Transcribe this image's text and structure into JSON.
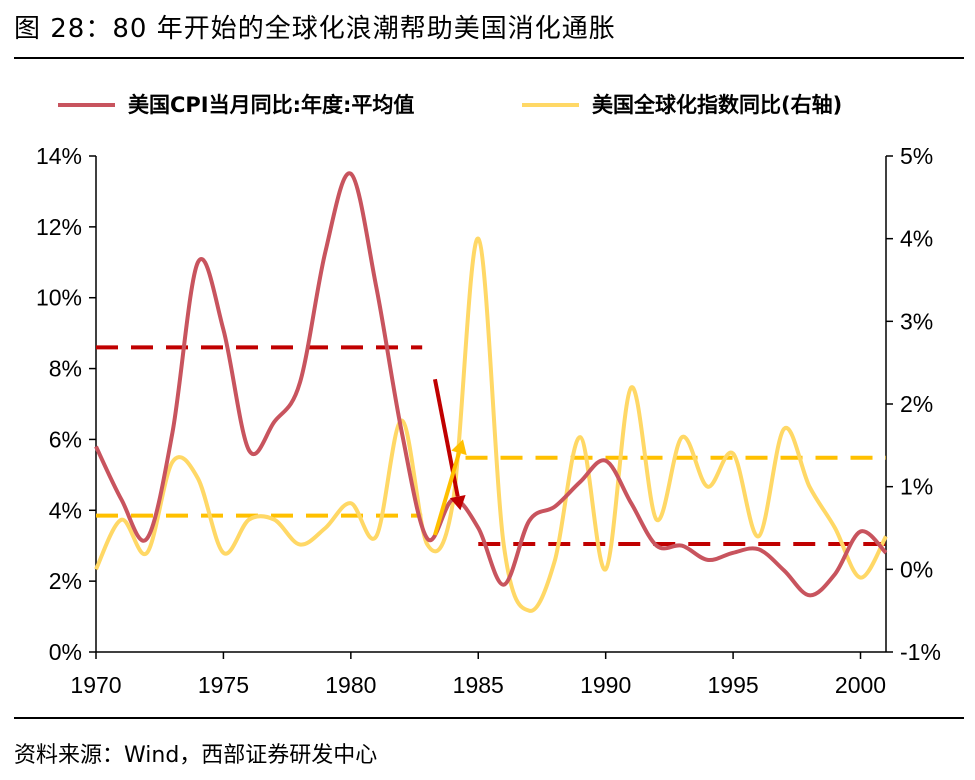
{
  "title": "图 28：80 年开始的全球化浪潮帮助美国消化通胀",
  "source": "资料来源：Wind，西部证券研发中心",
  "colors": {
    "cpi": "#c8545e",
    "globalization": "#ffd866",
    "cpi_dash": "#c00000",
    "glob_dash": "#ffc000",
    "arrow_down": "#c00000",
    "arrow_up": "#ffc000"
  },
  "chart_data": {
    "type": "line",
    "x_ticks": [
      "1970",
      "1975",
      "1980",
      "1985",
      "1990",
      "1995",
      "2000"
    ],
    "xlim": [
      1970,
      2001
    ],
    "y_left": {
      "ticks": [
        "0%",
        "2%",
        "4%",
        "6%",
        "8%",
        "10%",
        "12%",
        "14%"
      ],
      "ylim": [
        0,
        14
      ]
    },
    "y_right": {
      "ticks": [
        "-1%",
        "0%",
        "1%",
        "2%",
        "3%",
        "4%",
        "5%"
      ],
      "ylim": [
        -1,
        5
      ]
    },
    "legend_position": "top",
    "grid": false,
    "series": [
      {
        "name": "美国CPI当月同比:年度:平均值",
        "axis": "left",
        "x": [
          1970,
          1971,
          1972,
          1973,
          1974,
          1975,
          1976,
          1977,
          1978,
          1979,
          1980,
          1981,
          1982,
          1983,
          1984,
          1985,
          1986,
          1987,
          1988,
          1989,
          1990,
          1991,
          1992,
          1993,
          1994,
          1995,
          1996,
          1997,
          1998,
          1999,
          2000,
          2001
        ],
        "values": [
          5.8,
          4.3,
          3.2,
          6.2,
          11.0,
          9.1,
          5.7,
          6.5,
          7.6,
          11.3,
          13.5,
          10.3,
          6.2,
          3.2,
          4.3,
          3.5,
          1.9,
          3.7,
          4.1,
          4.8,
          5.4,
          4.2,
          3.0,
          3.0,
          2.6,
          2.8,
          2.9,
          2.3,
          1.6,
          2.2,
          3.4,
          2.8
        ]
      },
      {
        "name": "美国全球化指数同比(右轴)",
        "axis": "right",
        "x": [
          1970,
          1971,
          1972,
          1973,
          1974,
          1975,
          1976,
          1977,
          1978,
          1979,
          1980,
          1981,
          1982,
          1983,
          1984,
          1985,
          1986,
          1987,
          1988,
          1989,
          1990,
          1991,
          1992,
          1993,
          1994,
          1995,
          1996,
          1997,
          1998,
          1999,
          2000,
          2001
        ],
        "values": [
          0.0,
          0.6,
          0.2,
          1.3,
          1.1,
          0.2,
          0.6,
          0.6,
          0.3,
          0.5,
          0.8,
          0.4,
          1.8,
          0.3,
          0.8,
          4.0,
          0.3,
          -0.5,
          0.1,
          1.6,
          0.0,
          2.2,
          0.6,
          1.6,
          1.0,
          1.4,
          0.4,
          1.7,
          1.0,
          0.5,
          -0.1,
          0.4
        ]
      }
    ],
    "reference_lines": [
      {
        "axis": "left",
        "value": 8.6,
        "x_range": [
          1970,
          1982.8
        ],
        "color": "cpi_dash"
      },
      {
        "axis": "left",
        "value": 3.05,
        "x_range": [
          1985,
          2001
        ],
        "color": "cpi_dash"
      },
      {
        "axis": "right",
        "value": 0.65,
        "x_range": [
          1970,
          1982.8
        ],
        "color": "glob_dash"
      },
      {
        "axis": "right",
        "value": 1.35,
        "x_range": [
          1984.5,
          2001
        ],
        "color": "glob_dash"
      }
    ],
    "arrows": [
      {
        "direction": "down",
        "axis": "left",
        "from": [
          1983.3,
          7.7
        ],
        "to": [
          1984.3,
          4.0
        ],
        "color": "arrow_down"
      },
      {
        "direction": "up",
        "axis": "left",
        "from": [
          1983.3,
          3.3
        ],
        "to": [
          1984.4,
          6.0
        ],
        "color": "arrow_up"
      }
    ]
  }
}
